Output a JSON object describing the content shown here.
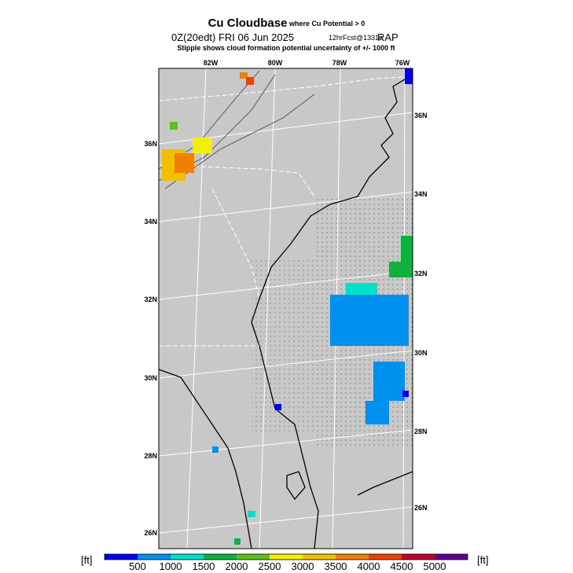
{
  "header": {
    "title": "Cu Cloudbase",
    "subtitle": "where Cu Potential > 0",
    "valid": "0Z(20edt) FRI 06 Jun 2025",
    "forecast": "12hrFcst@1331z",
    "model": "RAP",
    "note": "Stipple shows cloud formation potential uncertainty of +/-  1000 ft"
  },
  "map": {
    "lon_labels": [
      "82W",
      "80W",
      "78W",
      "76W"
    ],
    "lat_labels_left": [
      "36N",
      "34N",
      "32N",
      "30N",
      "28N",
      "26N"
    ],
    "lat_labels_right": [
      "36N",
      "34N",
      "32N",
      "30N",
      "28N",
      "26N"
    ]
  },
  "colorbar": {
    "unit_left": "[ft]",
    "unit_right": "[ft]",
    "labels": [
      "500",
      "1000",
      "1500",
      "2000",
      "2500",
      "3000",
      "3500",
      "4000",
      "4500",
      "5000"
    ],
    "colors": [
      "#0000f0",
      "#0090f0",
      "#00e0c8",
      "#10b040",
      "#60c020",
      "#f0f000",
      "#f0c000",
      "#f08000",
      "#f04000",
      "#c00030",
      "#600090"
    ]
  }
}
